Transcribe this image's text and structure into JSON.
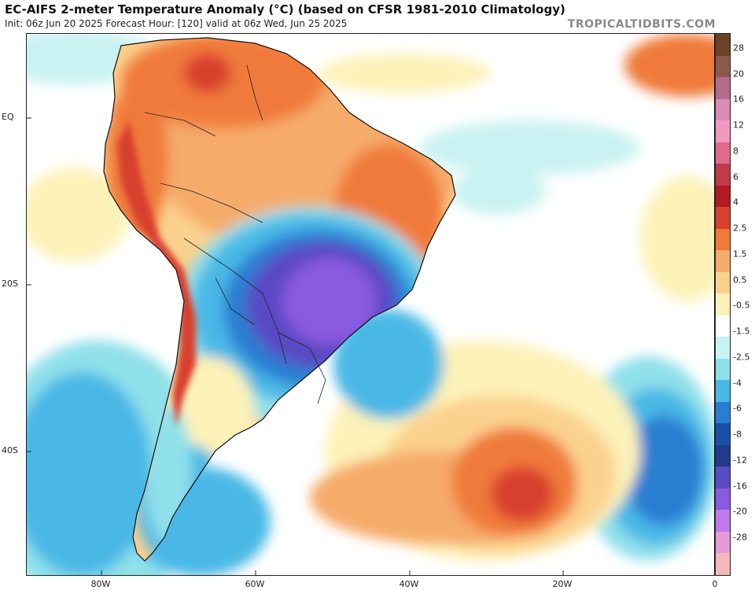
{
  "header": {
    "title": "EC-AIFS 2-meter Temperature Anomaly (°C) (based on CFSR 1981-2010 Climatology)",
    "subtitle": "Init: 06z Jun 20 2025   Forecast Hour: [120]   valid at 06z Wed, Jun 25 2025",
    "watermark": "TROPICALTIDBITS.COM"
  },
  "map": {
    "lat_labels": [
      "EQ",
      "20S",
      "40S"
    ],
    "lon_labels": [
      "80W",
      "60W",
      "40W",
      "20W",
      "0"
    ],
    "colors": {
      "ocean_neutral": "#ffffff",
      "land_border": "#111111"
    }
  },
  "colorbar": {
    "levels": [
      "28",
      "20",
      "16",
      "12",
      "8",
      "6",
      "4",
      "2.5",
      "1.5",
      "0.5",
      "-0.5",
      "-1.5",
      "-2.5",
      "-4",
      "-6",
      "-8",
      "-12",
      "-16",
      "-20",
      "-28"
    ],
    "colors": [
      "#6b4226",
      "#8c5a4a",
      "#b46c8c",
      "#d98cb4",
      "#f09ac2",
      "#e06a8c",
      "#c03a4a",
      "#b01a22",
      "#d8402e",
      "#f07a3a",
      "#f5ab6a",
      "#fbd18e",
      "#fdf2b8",
      "#ffffff",
      "#c9f2f2",
      "#8fe0ea",
      "#4ab8e6",
      "#2a7ed2",
      "#1a50a8",
      "#223a8a",
      "#5a4ac4",
      "#8a5ae0",
      "#c07aea",
      "#e69ad8",
      "#f5b8b8"
    ]
  }
}
